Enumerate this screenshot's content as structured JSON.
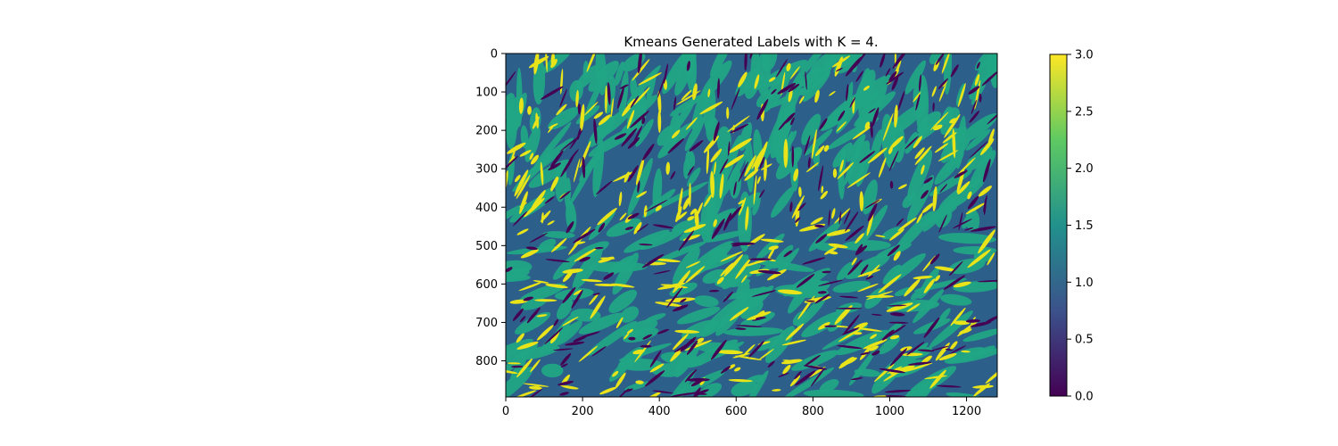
{
  "chart_data": [
    {
      "type": "heatmap",
      "title": "Kmeans Generated Labels with K = 4.",
      "xlabel": "",
      "ylabel": "",
      "image_shape": [
        894,
        1280
      ],
      "xlim": [
        0,
        1280
      ],
      "ylim": [
        894,
        0
      ],
      "y_axis_inverted": true,
      "xticks": [
        0,
        200,
        400,
        600,
        800,
        1000,
        1200
      ],
      "xtick_labels": [
        "0",
        "200",
        "400",
        "600",
        "800",
        "1000",
        "1200"
      ],
      "yticks": [
        0,
        100,
        200,
        300,
        400,
        500,
        600,
        700,
        800
      ],
      "ytick_labels": [
        "0",
        "100",
        "200",
        "300",
        "400",
        "500",
        "600",
        "700",
        "800"
      ],
      "label_values": [
        0,
        1,
        2,
        3
      ],
      "dominant_label": 1,
      "colormap": "viridis",
      "label_colors": [
        "#440154",
        "#2c5f8a",
        "#21a585",
        "#e8e419"
      ],
      "grid": false
    },
    {
      "type": "colorbar",
      "range": [
        0,
        3
      ],
      "ticks": [
        0.0,
        0.5,
        1.0,
        1.5,
        2.0,
        2.5,
        3.0
      ],
      "tick_labels": [
        "0.0",
        "0.5",
        "1.0",
        "1.5",
        "2.0",
        "2.5",
        "3.0"
      ],
      "stops": [
        "#440154",
        "#3b528b",
        "#21918c",
        "#5ec962",
        "#fde725"
      ]
    }
  ]
}
